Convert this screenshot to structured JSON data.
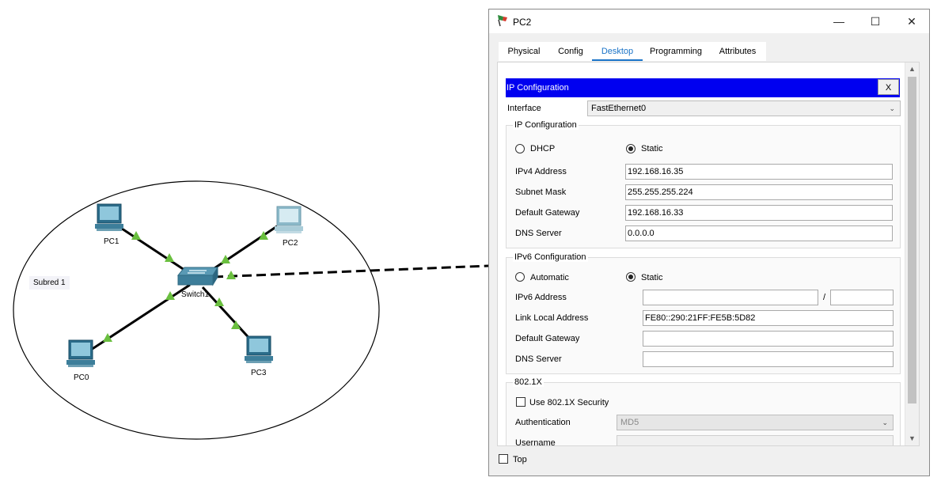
{
  "topology": {
    "subnet_note": "Subred 1",
    "devices": {
      "pc0": "PC0",
      "pc1": "PC1",
      "pc2": "PC2",
      "pc3": "PC3",
      "switch": "Switch1"
    },
    "link_indicator_color": "#6abf3f"
  },
  "window": {
    "title": "PC2",
    "tabs": [
      "Physical",
      "Config",
      "Desktop",
      "Programming",
      "Attributes"
    ],
    "active_tab": "Desktop",
    "panel_title": "IP Configuration",
    "panel_close": "X",
    "interface_label": "Interface",
    "interface_value": "FastEthernet0",
    "ipv4": {
      "group_title": "IP Configuration",
      "dhcp_label": "DHCP",
      "static_label": "Static",
      "selected": "Static",
      "address_label": "IPv4 Address",
      "address_value": "192.168.16.35",
      "mask_label": "Subnet Mask",
      "mask_value": "255.255.255.224",
      "gateway_label": "Default Gateway",
      "gateway_value": "192.168.16.33",
      "dns_label": "DNS Server",
      "dns_value": "0.0.0.0"
    },
    "ipv6": {
      "group_title": "IPv6 Configuration",
      "auto_label": "Automatic",
      "static_label": "Static",
      "selected": "Static",
      "address_label": "IPv6 Address",
      "address_value": "",
      "prefix_separator": "/",
      "prefix_value": "",
      "link_local_label": "Link Local Address",
      "link_local_value": "FE80::290:21FF:FE5B:5D82",
      "gateway_label": "Default Gateway",
      "gateway_value": "",
      "dns_label": "DNS Server",
      "dns_value": ""
    },
    "dot1x": {
      "group_title": "802.1X",
      "use_label": "Use 802.1X Security",
      "use_checked": false,
      "auth_label": "Authentication",
      "auth_value": "MD5",
      "username_label": "Username",
      "username_value": ""
    },
    "top_label": "Top",
    "top_checked": false,
    "accent_color": "#0000f0"
  }
}
